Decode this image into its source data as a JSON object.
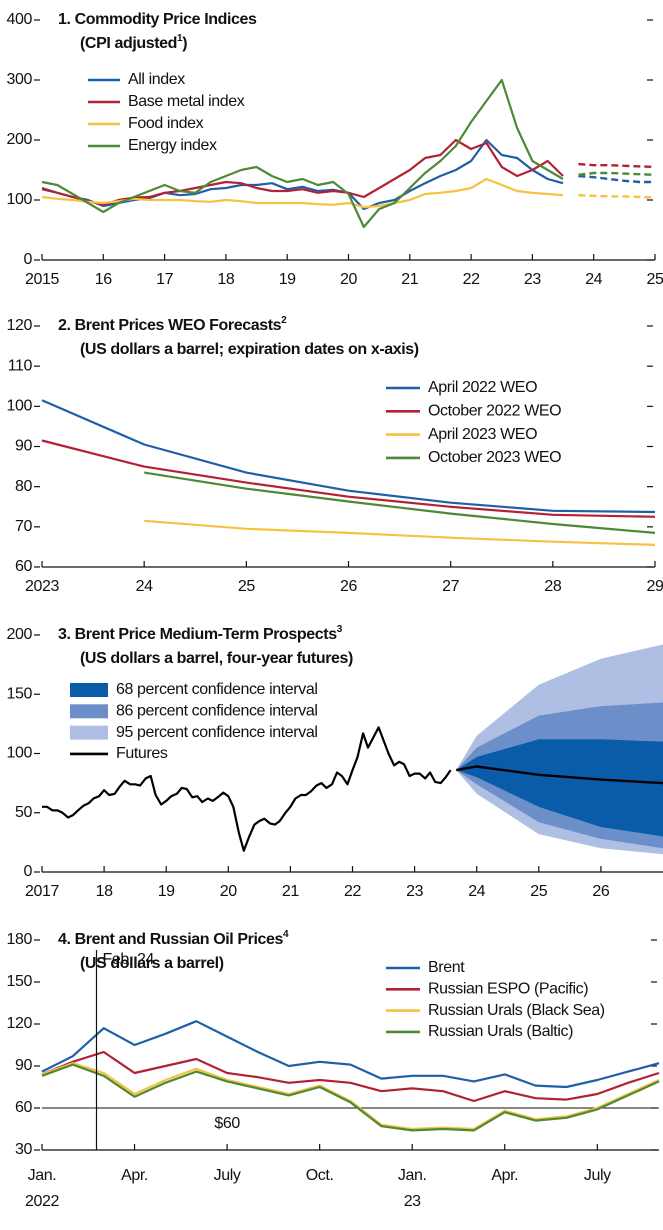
{
  "chart_data": [
    {
      "type": "line",
      "title": "1. Commodity Price Indices",
      "subtitle": "(CPI adjusted",
      "note": "1",
      "subtitle_end": ")",
      "x": [
        2015,
        2015.25,
        2015.5,
        2015.75,
        2016,
        2016.25,
        2016.5,
        2016.75,
        2017,
        2017.25,
        2017.5,
        2017.75,
        2018,
        2018.25,
        2018.5,
        2018.75,
        2019,
        2019.25,
        2019.5,
        2019.75,
        2020,
        2020.25,
        2020.5,
        2020.75,
        2021,
        2021.25,
        2021.5,
        2021.75,
        2022,
        2022.25,
        2022.5,
        2022.75,
        2023,
        2023.25,
        2023.5
      ],
      "forecast_x": [
        2023.75,
        2024,
        2024.25,
        2024.5,
        2024.75,
        2025
      ],
      "forecast_dash": true,
      "mirror_ticks": true,
      "legend": "upper left",
      "series": [
        {
          "name": "All index",
          "color": "#1f5fa8",
          "values": [
            120,
            112,
            105,
            100,
            90,
            95,
            100,
            103,
            112,
            108,
            110,
            118,
            120,
            125,
            125,
            128,
            118,
            122,
            115,
            117,
            112,
            85,
            95,
            100,
            115,
            128,
            140,
            150,
            165,
            200,
            175,
            170,
            150,
            135,
            128
          ],
          "forecast_values": [
            140,
            138,
            135,
            132,
            130,
            130
          ]
        },
        {
          "name": "Base metal index",
          "color": "#b22234",
          "values": [
            118,
            112,
            105,
            98,
            92,
            100,
            104,
            105,
            112,
            115,
            120,
            125,
            130,
            128,
            120,
            115,
            115,
            118,
            112,
            115,
            112,
            105,
            120,
            135,
            150,
            170,
            175,
            200,
            185,
            195,
            155,
            140,
            150,
            165,
            140
          ],
          "forecast_values": [
            160,
            158,
            158,
            157,
            156,
            155
          ]
        },
        {
          "name": "Food index",
          "color": "#f5c242",
          "values": [
            105,
            102,
            100,
            97,
            95,
            98,
            102,
            100,
            100,
            100,
            98,
            97,
            100,
            98,
            95,
            95,
            95,
            95,
            93,
            92,
            95,
            88,
            90,
            95,
            100,
            110,
            112,
            115,
            120,
            135,
            125,
            115,
            112,
            110,
            108
          ],
          "forecast_values": [
            108,
            107,
            106,
            106,
            105,
            104
          ]
        },
        {
          "name": "Energy index",
          "color": "#4e8a35",
          "values": [
            130,
            125,
            110,
            95,
            80,
            95,
            105,
            115,
            125,
            115,
            112,
            130,
            140,
            150,
            155,
            140,
            130,
            135,
            125,
            130,
            110,
            55,
            85,
            95,
            120,
            145,
            165,
            190,
            230,
            265,
            300,
            220,
            165,
            150,
            135
          ],
          "forecast_values": [
            142,
            145,
            145,
            144,
            143,
            142
          ]
        }
      ],
      "xlim": [
        2015,
        2025
      ],
      "xticks": [
        2015,
        {
          "value": 2016,
          "label": "16"
        },
        {
          "value": 2017,
          "label": "17"
        },
        {
          "value": 2018,
          "label": "18"
        },
        {
          "value": 2019,
          "label": "19"
        },
        {
          "value": 2020,
          "label": "20"
        },
        {
          "value": 2021,
          "label": "21"
        },
        {
          "value": 2022,
          "label": "22"
        },
        {
          "value": 2023,
          "label": "23"
        },
        {
          "value": 2024,
          "label": "24"
        },
        {
          "value": 2025,
          "label": "25"
        }
      ],
      "ylim": [
        0,
        400
      ],
      "yticks": [
        0,
        100,
        200,
        300,
        400
      ]
    },
    {
      "type": "line",
      "title": "2. Brent Prices WEO Forecasts",
      "note": "2",
      "subtitle": "(US dollars a barrel; expiration dates on x-axis)",
      "x": [
        2023,
        2024,
        2025,
        2026,
        2027,
        2028,
        2029
      ],
      "mirror_ticks": true,
      "legend": "upper right",
      "series": [
        {
          "name": "April 2022 WEO",
          "color": "#1f5fa8",
          "values": [
            101.5,
            90.5,
            83.5,
            79,
            76,
            74,
            73.7
          ]
        },
        {
          "name": "October 2022 WEO",
          "color": "#b22234",
          "values": [
            91.5,
            85,
            81,
            77.5,
            75,
            73,
            72.5
          ]
        },
        {
          "name": "April 2023 WEO",
          "color": "#f5c242",
          "values": [
            null,
            71.5,
            69.5,
            68.5,
            67.3,
            66.3,
            65.5
          ]
        },
        {
          "name": "October 2023 WEO",
          "color": "#4e8a35",
          "values": [
            null,
            83.5,
            79.5,
            76.3,
            73.3,
            70.7,
            68.5
          ]
        }
      ],
      "xlim": [
        2023,
        2029
      ],
      "xticks": [
        2023,
        {
          "value": 2024,
          "label": "24"
        },
        {
          "value": 2025,
          "label": "25"
        },
        {
          "value": 2026,
          "label": "26"
        },
        {
          "value": 2027,
          "label": "27"
        },
        {
          "value": 2028,
          "label": "28"
        },
        {
          "value": 2029,
          "label": "29"
        }
      ],
      "ylim": [
        60,
        120
      ],
      "yticks": [
        60,
        70,
        80,
        90,
        100,
        110,
        120
      ]
    },
    {
      "type": "line",
      "title": "3. Brent Price Medium-Term Prospects",
      "note": "3",
      "subtitle": "(US dollars a barrel, four-year futures)",
      "legend": "upper left",
      "x": [
        2017,
        2017.08,
        2017.17,
        2017.25,
        2017.33,
        2017.42,
        2017.5,
        2017.58,
        2017.67,
        2017.75,
        2017.83,
        2017.92,
        2018,
        2018.08,
        2018.17,
        2018.25,
        2018.33,
        2018.42,
        2018.5,
        2018.58,
        2018.67,
        2018.75,
        2018.83,
        2018.92,
        2019,
        2019.08,
        2019.17,
        2019.25,
        2019.33,
        2019.42,
        2019.5,
        2019.58,
        2019.67,
        2019.75,
        2019.83,
        2019.92,
        2020,
        2020.08,
        2020.17,
        2020.25,
        2020.33,
        2020.42,
        2020.5,
        2020.58,
        2020.67,
        2020.75,
        2020.83,
        2020.92,
        2021,
        2021.08,
        2021.17,
        2021.25,
        2021.33,
        2021.42,
        2021.5,
        2021.58,
        2021.67,
        2021.75,
        2021.83,
        2021.92,
        2022,
        2022.08,
        2022.17,
        2022.25,
        2022.33,
        2022.42,
        2022.5,
        2022.58,
        2022.67,
        2022.75,
        2022.83,
        2022.92,
        2023,
        2023.08,
        2023.17,
        2023.25,
        2023.33,
        2023.42,
        2023.5,
        2023.58
      ],
      "forecast_x": [
        2023.67,
        2024,
        2025,
        2026,
        2027
      ],
      "bands": [
        {
          "name": "68 percent confidence interval",
          "color": "#0b5ca8",
          "lower": [
            86,
            80,
            55,
            38,
            30
          ],
          "upper": [
            86,
            97,
            112,
            112,
            110
          ]
        },
        {
          "name": "86 percent confidence interval",
          "color": "#6d8fc9",
          "lower": [
            86,
            74,
            42,
            28,
            20
          ],
          "upper": [
            86,
            105,
            132,
            140,
            143
          ]
        },
        {
          "name": "95 percent confidence interval",
          "color": "#aebfe3",
          "lower": [
            86,
            66,
            32,
            20,
            15
          ],
          "upper": [
            86,
            115,
            158,
            180,
            192
          ]
        }
      ],
      "series": [
        {
          "name": "Futures",
          "color": "#000000",
          "values": [
            55,
            55,
            52,
            52,
            50,
            46,
            48,
            52,
            56,
            58,
            62,
            64,
            69,
            65,
            66,
            72,
            77,
            74,
            74,
            73,
            79,
            81,
            65,
            57,
            60,
            64,
            66,
            71,
            70,
            63,
            64,
            59,
            62,
            60,
            63,
            67,
            64,
            55,
            33,
            18,
            29,
            40,
            43,
            45,
            41,
            40,
            43,
            50,
            55,
            62,
            65,
            65,
            68,
            73,
            75,
            71,
            74,
            84,
            81,
            74,
            86,
            97,
            117,
            105,
            113,
            122,
            111,
            100,
            90,
            93,
            91,
            81,
            83,
            83,
            79,
            84,
            76,
            75,
            80,
            86
          ],
          "forecast_values": [
            86,
            89,
            82,
            78,
            75
          ]
        }
      ],
      "xlim": [
        2017,
        2027
      ],
      "xticks": [
        2017,
        {
          "value": 2018,
          "label": "18"
        },
        {
          "value": 2019,
          "label": "19"
        },
        {
          "value": 2020,
          "label": "20"
        },
        {
          "value": 2021,
          "label": "21"
        },
        {
          "value": 2022,
          "label": "22"
        },
        {
          "value": 2023,
          "label": "23"
        },
        {
          "value": 2024,
          "label": "24"
        },
        {
          "value": 2025,
          "label": "25"
        },
        {
          "value": 2026,
          "label": "26"
        }
      ],
      "ylim": [
        0,
        200
      ],
      "yticks": [
        0,
        50,
        100,
        150,
        200
      ]
    },
    {
      "type": "line",
      "title": "4. Brent and Russian Oil Prices",
      "note": "4",
      "subtitle": "(US dollars a barrel)",
      "mirror_ticks": true,
      "legend": "upper right",
      "x": [
        "2022-01",
        "2022-02",
        "2022-03",
        "2022-04",
        "2022-05",
        "2022-06",
        "2022-07",
        "2022-08",
        "2022-09",
        "2022-10",
        "2022-11",
        "2022-12",
        "2023-01",
        "2023-02",
        "2023-03",
        "2023-04",
        "2023-05",
        "2023-06",
        "2023-07",
        "2023-08",
        "2023-09"
      ],
      "series": [
        {
          "name": "Brent",
          "color": "#1f5fa8",
          "values": [
            86,
            97,
            117,
            105,
            113,
            122,
            111,
            100,
            90,
            93,
            91,
            81,
            83,
            83,
            79,
            84,
            76,
            75,
            80,
            86,
            92
          ]
        },
        {
          "name": "Russian ESPO (Pacific)",
          "color": "#b22234",
          "values": [
            84,
            93,
            100,
            85,
            90,
            95,
            85,
            82,
            78,
            80,
            78,
            72,
            74,
            72,
            65,
            72,
            67,
            66,
            70,
            78,
            85
          ]
        },
        {
          "name": "Russian Urals (Black Sea)",
          "color": "#f5c242",
          "values": [
            84,
            92,
            85,
            70,
            80,
            88,
            80,
            75,
            70,
            76,
            65,
            48,
            45,
            46,
            45,
            58,
            52,
            54,
            60,
            70,
            80
          ]
        },
        {
          "name": "Russian Urals (Baltic)",
          "color": "#4e8a35",
          "values": [
            83,
            91,
            83,
            68,
            78,
            86,
            79,
            74,
            69,
            75,
            64,
            47,
            44,
            45,
            44,
            57,
            51,
            53,
            59,
            69,
            79
          ]
        }
      ],
      "hline": {
        "value": 60,
        "label": "$60"
      },
      "vline": {
        "x": "2022-02-24",
        "label": "Feb. 24"
      },
      "xlim": [
        "2022-01",
        "2023-09"
      ],
      "xticks": [
        {
          "value": "2022-01",
          "label": "Jan.",
          "year": "2022"
        },
        {
          "value": "2022-04",
          "label": "Apr."
        },
        {
          "value": "2022-07",
          "label": "July"
        },
        {
          "value": "2022-10",
          "label": "Oct."
        },
        {
          "value": "2023-01",
          "label": "Jan.",
          "year": "23"
        },
        {
          "value": "2023-04",
          "label": "Apr."
        },
        {
          "value": "2023-07",
          "label": "July"
        }
      ],
      "ylim": [
        30,
        180
      ],
      "yticks": [
        30,
        60,
        90,
        120,
        150,
        180
      ]
    }
  ]
}
